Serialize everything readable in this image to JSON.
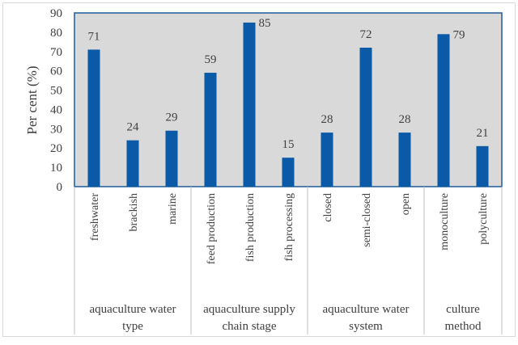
{
  "chart_data": {
    "type": "bar",
    "title": "",
    "ylabel": "Per cent (%)",
    "xlabel": "",
    "ylim": [
      0,
      90
    ],
    "yticks": [
      0,
      10,
      20,
      30,
      40,
      50,
      60,
      70,
      80,
      90
    ],
    "categories": [
      "freshwater",
      "brackish",
      "marine",
      "feed production",
      "fish production",
      "fish processing",
      "closed",
      "semi-closed",
      "open",
      "monoculture",
      "polyculture"
    ],
    "values": [
      71,
      24,
      29,
      59,
      85,
      15,
      28,
      72,
      28,
      79,
      21
    ],
    "groups": [
      {
        "lines": [
          "aquaculture water",
          "type"
        ],
        "count": 3
      },
      {
        "lines": [
          "aquaculture supply",
          "chain stage"
        ],
        "count": 3
      },
      {
        "lines": [
          "aquaculture water",
          "system"
        ],
        "count": 3
      },
      {
        "lines": [
          "culture",
          "method"
        ],
        "count": 2
      }
    ],
    "bar_color": "#0a5aa8",
    "plot_background": "#d9d9d9",
    "grid": false
  }
}
